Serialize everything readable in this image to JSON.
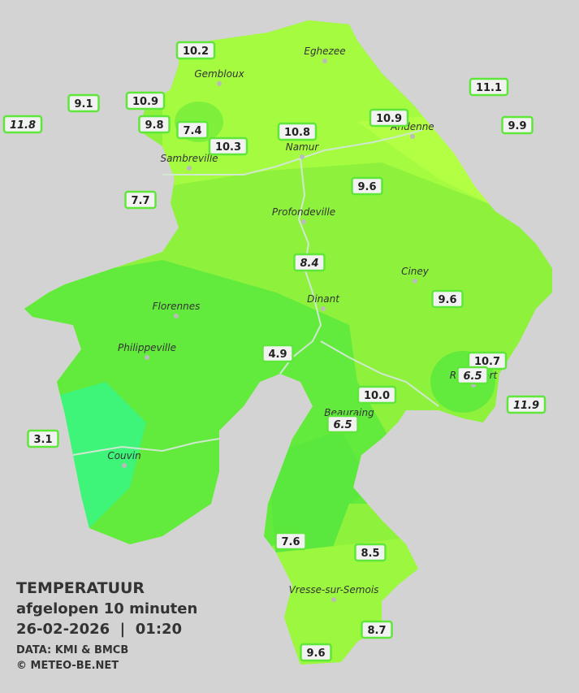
{
  "title": {
    "heading": "TEMPERATUUR",
    "subheading": "afgelopen 10 minuten",
    "timestamp": "26-02-2026  |  01:20"
  },
  "credits": [
    "DATA: KMI & BMCB",
    "© METEO-BE.NET"
  ],
  "towns": [
    "Eghezee",
    "Gembloux",
    "Andenne",
    "Namur",
    "Sambreville",
    "Profondeville",
    "Ciney",
    "Dinant",
    "Florennes",
    "Philippeville",
    "Rochefort",
    "Beauraing",
    "Couvin",
    "Vresse-sur-Semois"
  ],
  "stations": [
    "10.2",
    "9.1",
    "10.9",
    "11.8",
    "9.8",
    "7.4",
    "10.3",
    "10.8",
    "10.9",
    "11.1",
    "9.9",
    "7.7",
    "9.6",
    "8.4",
    "9.6",
    "4.9",
    "10.7",
    "6.5",
    "10.0",
    "11.9",
    "6.5",
    "3.1",
    "7.6",
    "8.5",
    "8.7",
    "9.6"
  ]
}
